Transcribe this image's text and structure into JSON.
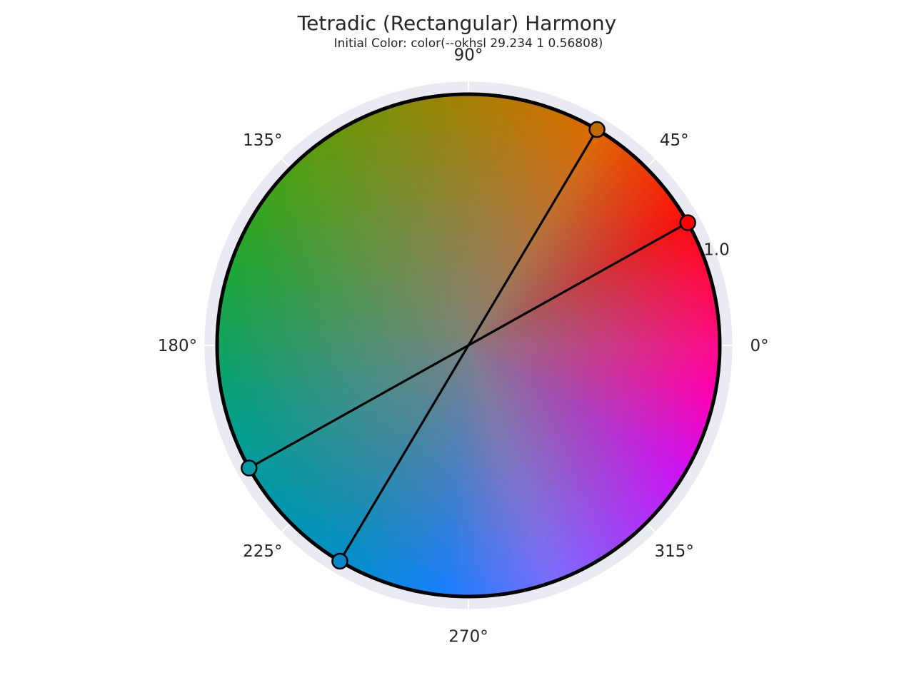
{
  "chart_data": {
    "type": "polar-color-wheel",
    "title": "Tetradic (Rectangular) Harmony",
    "subtitle": "Initial Color: color(--okhsl 29.234 1 0.56808)",
    "angle_ticks": [
      {
        "deg": 0,
        "label": "0°"
      },
      {
        "deg": 45,
        "label": "45°"
      },
      {
        "deg": 90,
        "label": "90°"
      },
      {
        "deg": 135,
        "label": "135°"
      },
      {
        "deg": 180,
        "label": "180°"
      },
      {
        "deg": 225,
        "label": "225°"
      },
      {
        "deg": 270,
        "label": "270°"
      },
      {
        "deg": 315,
        "label": "315°"
      }
    ],
    "radial_ticks": [
      {
        "r": 1.0,
        "label": "1.0"
      }
    ],
    "rlim": [
      0,
      1.05
    ],
    "grid": true,
    "points": [
      {
        "hue_deg": 29.234,
        "r": 1.0,
        "color": "#ff0000"
      },
      {
        "hue_deg": 59.234,
        "r": 1.0,
        "color": "#c06a00"
      },
      {
        "hue_deg": 209.234,
        "r": 1.0,
        "color": "#009aa4"
      },
      {
        "hue_deg": 239.234,
        "r": 1.0,
        "color": "#0a86c6"
      }
    ],
    "lines": [
      {
        "from": 0,
        "to": 2
      },
      {
        "from": 1,
        "to": 3
      }
    ],
    "wheel_colors": {
      "hue_0": "#ff0a8a",
      "hue_30": "#ff0a0a",
      "hue_60": "#e06a00",
      "hue_90": "#a68000",
      "hue_135": "#4fa010",
      "hue_160": "#20a830",
      "hue_200": "#00a08c",
      "hue_240": "#0090c8",
      "hue_265": "#1880ff",
      "hue_290": "#7b6cff",
      "hue_330": "#d010f5",
      "hue_350": "#ff00b0",
      "center": "#808080",
      "frame": "#eaeaf2",
      "outline": "#000000"
    }
  }
}
